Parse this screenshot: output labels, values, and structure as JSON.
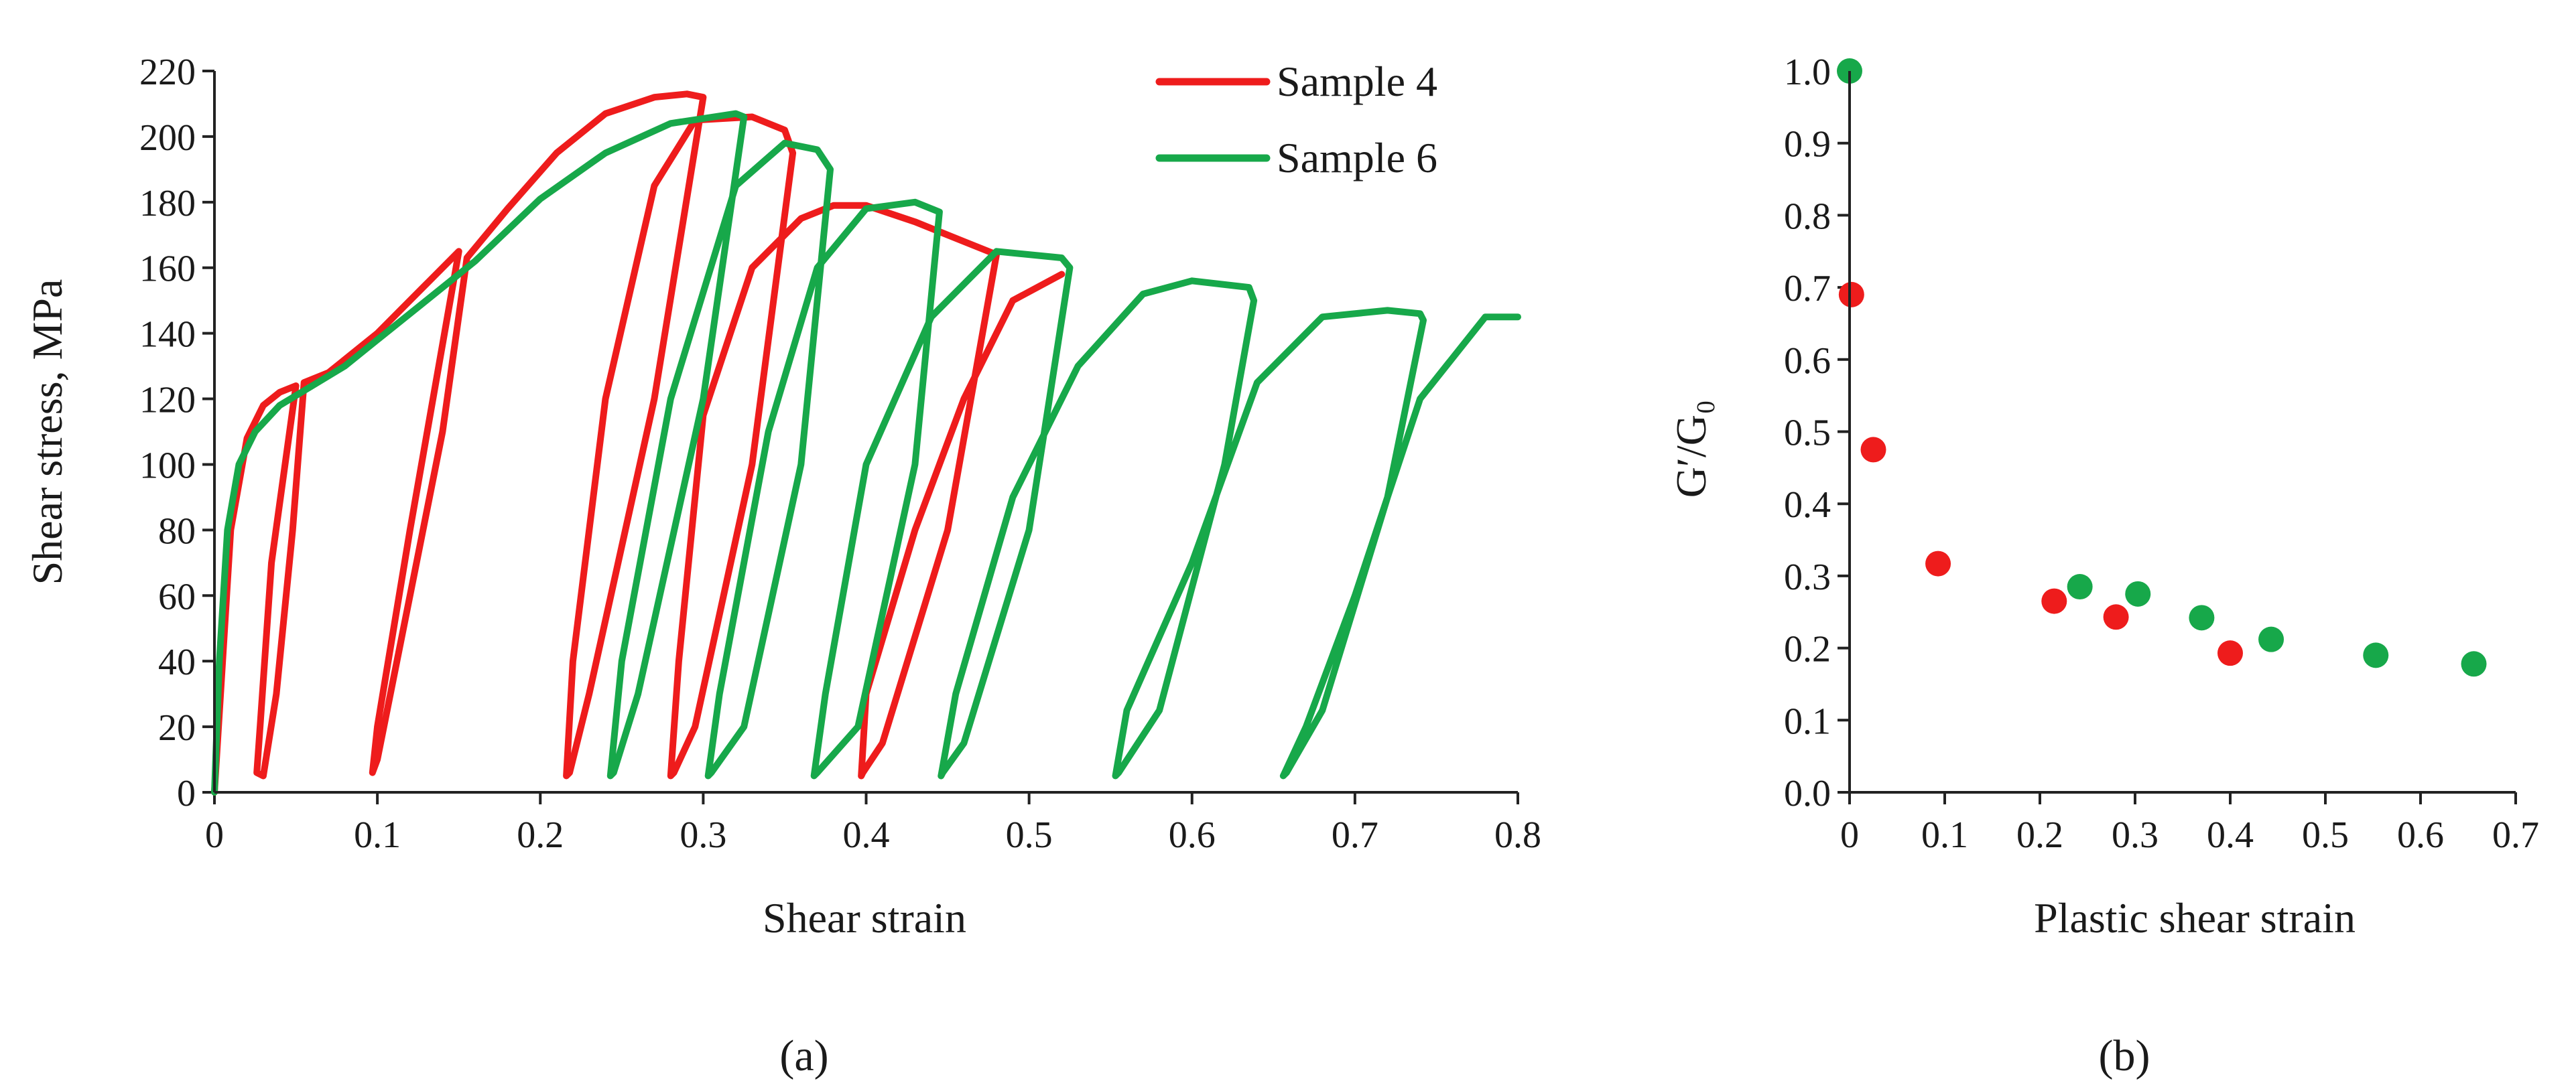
{
  "colors": {
    "sample4": "#ee1c1c",
    "sample6": "#17a84a",
    "axis": "#222222",
    "text": "#1a1a1a"
  },
  "panel_labels": {
    "a": "(a)",
    "b": "(b)"
  },
  "chart_data": [
    {
      "type": "line",
      "panel": "a",
      "title": "",
      "xlabel": "Shear strain",
      "ylabel": "Shear stress, MPa",
      "xlim": [
        0,
        0.8
      ],
      "ylim": [
        0,
        220
      ],
      "xticks": [
        0,
        0.1,
        0.2,
        0.3,
        0.4,
        0.5,
        0.6,
        0.7,
        0.8
      ],
      "xtick_labels": [
        "0",
        "0.1",
        "0.2",
        "0.3",
        "0.4",
        "0.5",
        "0.6",
        "0.7",
        "0.8"
      ],
      "yticks": [
        0,
        20,
        40,
        60,
        80,
        100,
        120,
        140,
        160,
        180,
        200,
        220
      ],
      "ytick_labels": [
        "0",
        "20",
        "40",
        "60",
        "80",
        "100",
        "120",
        "140",
        "160",
        "180",
        "200",
        "220"
      ],
      "legend": [
        "Sample 4",
        "Sample 6"
      ],
      "legend_position": "top-right",
      "series": [
        {
          "name": "Sample 4",
          "color": "#ee1c1c",
          "x": [
            0,
            0.005,
            0.01,
            0.02,
            0.03,
            0.04,
            0.05,
            0.035,
            0.028,
            0.026,
            0.03,
            0.038,
            0.048,
            0.055,
            0.07,
            0.1,
            0.13,
            0.15,
            0.12,
            0.1,
            0.097,
            0.1,
            0.12,
            0.14,
            0.155,
            0.18,
            0.21,
            0.24,
            0.27,
            0.29,
            0.3,
            0.27,
            0.23,
            0.218,
            0.216,
            0.22,
            0.24,
            0.27,
            0.295,
            0.33,
            0.35,
            0.355,
            0.33,
            0.295,
            0.282,
            0.28,
            0.285,
            0.3,
            0.33,
            0.36,
            0.38,
            0.4,
            0.43,
            0.46,
            0.48,
            0.45,
            0.41,
            0.398,
            0.397,
            0.4,
            0.43,
            0.46,
            0.49,
            0.52
          ],
          "y": [
            0,
            40,
            80,
            108,
            118,
            122,
            124,
            70,
            20,
            6,
            5,
            30,
            80,
            125,
            128,
            140,
            155,
            165,
            80,
            20,
            6,
            10,
            60,
            110,
            163,
            178,
            195,
            207,
            212,
            213,
            212,
            120,
            30,
            6,
            5,
            40,
            120,
            185,
            205,
            206,
            202,
            195,
            100,
            20,
            6,
            5,
            40,
            115,
            160,
            175,
            179,
            179,
            174,
            168,
            164,
            80,
            15,
            6,
            5,
            30,
            80,
            120,
            150,
            158
          ]
        },
        {
          "name": "Sample 6",
          "color": "#17a84a",
          "x": [
            0,
            0.003,
            0.008,
            0.015,
            0.025,
            0.04,
            0.06,
            0.08,
            0.1,
            0.13,
            0.16,
            0.2,
            0.24,
            0.28,
            0.32,
            0.325,
            0.3,
            0.26,
            0.245,
            0.243,
            0.25,
            0.28,
            0.32,
            0.35,
            0.37,
            0.378,
            0.36,
            0.325,
            0.305,
            0.303,
            0.31,
            0.34,
            0.37,
            0.4,
            0.43,
            0.445,
            0.43,
            0.395,
            0.37,
            0.368,
            0.375,
            0.4,
            0.44,
            0.48,
            0.52,
            0.525,
            0.5,
            0.46,
            0.447,
            0.446,
            0.455,
            0.49,
            0.53,
            0.57,
            0.6,
            0.635,
            0.638,
            0.62,
            0.58,
            0.555,
            0.553,
            0.56,
            0.6,
            0.64,
            0.68,
            0.72,
            0.74,
            0.742,
            0.72,
            0.68,
            0.658,
            0.656,
            0.67,
            0.7,
            0.74,
            0.78,
            0.8
          ],
          "y": [
            0,
            40,
            80,
            100,
            110,
            118,
            124,
            130,
            138,
            150,
            162,
            181,
            195,
            204,
            207,
            206,
            120,
            30,
            6,
            5,
            40,
            120,
            185,
            198,
            196,
            190,
            100,
            20,
            6,
            5,
            30,
            110,
            160,
            178,
            180,
            177,
            100,
            20,
            6,
            5,
            30,
            100,
            145,
            165,
            163,
            160,
            80,
            15,
            6,
            5,
            30,
            90,
            130,
            152,
            156,
            154,
            150,
            100,
            25,
            6,
            5,
            25,
            70,
            125,
            145,
            147,
            146,
            144,
            90,
            25,
            6,
            5,
            20,
            60,
            120,
            145,
            145
          ]
        }
      ]
    },
    {
      "type": "scatter",
      "panel": "b",
      "title": "",
      "xlabel": "Plastic shear strain",
      "ylabel": "G′/G₀",
      "xlim": [
        0,
        0.7
      ],
      "ylim": [
        0,
        1.0
      ],
      "xticks": [
        0,
        0.1,
        0.2,
        0.3,
        0.4,
        0.5,
        0.6,
        0.7
      ],
      "xtick_labels": [
        "0",
        "0.1",
        "0.2",
        "0.3",
        "0.4",
        "0.5",
        "0.6",
        "0.7"
      ],
      "yticks": [
        0,
        0.1,
        0.2,
        0.3,
        0.4,
        0.5,
        0.6,
        0.7,
        0.8,
        0.9,
        1.0
      ],
      "ytick_labels": [
        "0.0",
        "0.1",
        "0.2",
        "0.3",
        "0.4",
        "0.5",
        "0.6",
        "0.7",
        "0.8",
        "0.9",
        "1.0"
      ],
      "series": [
        {
          "name": "Sample 4",
          "color": "#ee1c1c",
          "x": [
            0.002,
            0.025,
            0.093,
            0.215,
            0.28,
            0.4
          ],
          "y": [
            0.69,
            0.475,
            0.317,
            0.265,
            0.243,
            0.193
          ]
        },
        {
          "name": "Sample 6",
          "color": "#17a84a",
          "x": [
            0,
            0.242,
            0.303,
            0.37,
            0.443,
            0.553,
            0.656
          ],
          "y": [
            1.0,
            0.285,
            0.275,
            0.242,
            0.212,
            0.19,
            0.178
          ]
        }
      ]
    }
  ]
}
